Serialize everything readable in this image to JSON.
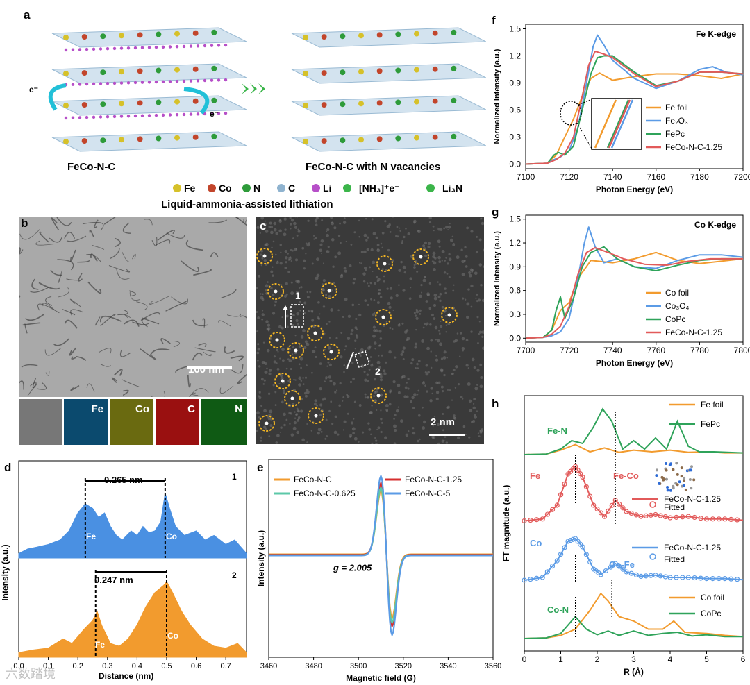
{
  "panels": {
    "a": "a",
    "b": "b",
    "c": "c",
    "d": "d",
    "e": "e",
    "f": "f",
    "g": "g",
    "h": "h"
  },
  "schematic": {
    "left_title": "FeCo-N-C",
    "right_title": "FeCo-N-C with N vacancies",
    "caption": "Liquid-ammonia-assisted lithiation",
    "electron": "e",
    "legend": [
      "Fe",
      "Co",
      "N",
      "C",
      "Li",
      "[NH3]+e-",
      "Li3N"
    ],
    "legend_colors": {
      "Fe": "#d6c12a",
      "Co": "#c2452b",
      "N": "#2e9b3a",
      "C": "#8fb3cf",
      "Li": "#b64fc8"
    }
  },
  "tem": {
    "scale_b": "100 nm",
    "scale_c": "2 nm",
    "maps": [
      "Fe",
      "Co",
      "C",
      "N"
    ],
    "box1": "1",
    "box2": "2"
  },
  "line_profiles": {
    "profile1": {
      "label": "1",
      "distance": "0.265 nm",
      "left_atom": "Fe",
      "right_atom": "Co",
      "color": "#4a90e2"
    },
    "profile2": {
      "label": "2",
      "distance": "0.247 nm",
      "left_atom": "Fe",
      "right_atom": "Co",
      "color": "#f29b2e"
    },
    "xlabel": "Distance (nm)",
    "ylabel": "Intensity (a.u.)",
    "xticks": [
      "0.0",
      "0.1",
      "0.2",
      "0.3",
      "0.4",
      "0.5",
      "0.6",
      "0.7"
    ]
  },
  "chart_data": [
    {
      "panel": "e",
      "type": "line",
      "title": "",
      "xlabel": "Magnetic field (G)",
      "ylabel": "Intensity (a.u.)",
      "xlim": [
        3460,
        3560
      ],
      "xticks": [
        "3460",
        "3480",
        "3500",
        "3520",
        "3540",
        "3560"
      ],
      "annotation": "g = 2.005",
      "series": [
        {
          "name": "FeCo-N-C",
          "color": "#f29b2e",
          "amp": 0.8
        },
        {
          "name": "FeCo-N-C-1.25",
          "color": "#d62f2f",
          "amp": 0.9
        },
        {
          "name": "FeCo-N-C-0.625",
          "color": "#5cc8a8",
          "amp": 0.85
        },
        {
          "name": "FeCo-N-C-5",
          "color": "#5b9be6",
          "amp": 1.0
        }
      ]
    },
    {
      "panel": "f",
      "type": "line",
      "title": "Fe K-edge",
      "xlabel": "Photon Energy (eV)",
      "ylabel": "Normalized Intensity (a.u.)",
      "xlim": [
        7100,
        7200
      ],
      "ylim": [
        -0.05,
        1.55
      ],
      "xticks": [
        "7100",
        "7120",
        "7140",
        "7160",
        "7180",
        "7200"
      ],
      "yticks": [
        "0.0",
        "0.3",
        "0.6",
        "0.9",
        "1.2",
        "1.5"
      ],
      "series": [
        {
          "name": "Fe foil",
          "color": "#f29b2e",
          "x": [
            7100,
            7110,
            7114,
            7118,
            7122,
            7126,
            7130,
            7134,
            7140,
            7150,
            7160,
            7170,
            7180,
            7190,
            7200
          ],
          "y": [
            0,
            0.01,
            0.1,
            0.3,
            0.5,
            0.75,
            0.95,
            1.01,
            0.93,
            0.97,
            1.0,
            1.0,
            0.98,
            0.95,
            1.0
          ]
        },
        {
          "name": "Fe2O3",
          "color": "#5b9be6",
          "x": [
            7100,
            7110,
            7113,
            7116,
            7120,
            7124,
            7128,
            7131,
            7133,
            7136,
            7140,
            7150,
            7160,
            7170,
            7180,
            7186,
            7192,
            7200
          ],
          "y": [
            0,
            0.01,
            0.05,
            0.08,
            0.15,
            0.4,
            0.9,
            1.3,
            1.43,
            1.32,
            1.15,
            0.95,
            0.84,
            0.92,
            1.05,
            1.08,
            1.02,
            0.99
          ]
        },
        {
          "name": "FePc",
          "color": "#2fa35a",
          "x": [
            7100,
            7110,
            7113,
            7115,
            7118,
            7122,
            7126,
            7130,
            7133,
            7136,
            7140,
            7150,
            7160,
            7170,
            7180,
            7190,
            7200
          ],
          "y": [
            0,
            0.01,
            0.1,
            0.13,
            0.1,
            0.2,
            0.6,
            1.0,
            1.18,
            1.2,
            1.2,
            1.02,
            0.87,
            0.92,
            1.02,
            1.02,
            1.0
          ]
        },
        {
          "name": "FeCo-N-C-1.25",
          "color": "#e25a5a",
          "x": [
            7100,
            7110,
            7114,
            7118,
            7122,
            7126,
            7129,
            7132,
            7136,
            7140,
            7150,
            7160,
            7170,
            7180,
            7190,
            7200
          ],
          "y": [
            0,
            0.01,
            0.05,
            0.12,
            0.3,
            0.75,
            1.1,
            1.25,
            1.22,
            1.18,
            1.0,
            0.86,
            0.92,
            1.02,
            1.02,
            1.0
          ]
        }
      ]
    },
    {
      "panel": "g",
      "type": "line",
      "title": "Co K-edge",
      "xlabel": "Photon Energy (eV)",
      "ylabel": "Normalized Intensity (a.u.)",
      "xlim": [
        7700,
        7800
      ],
      "ylim": [
        -0.05,
        1.55
      ],
      "xticks": [
        "7700",
        "7720",
        "7740",
        "7760",
        "7780",
        "7800"
      ],
      "yticks": [
        "0.0",
        "0.3",
        "0.6",
        "0.9",
        "1.2",
        "1.5"
      ],
      "series": [
        {
          "name": "Co foil",
          "color": "#f29b2e",
          "x": [
            7700,
            7708,
            7712,
            7716,
            7720,
            7724,
            7730,
            7740,
            7750,
            7760,
            7770,
            7780,
            7790,
            7800
          ],
          "y": [
            0,
            0.01,
            0.1,
            0.35,
            0.45,
            0.75,
            0.98,
            0.95,
            1.0,
            1.08,
            0.98,
            0.94,
            0.97,
            1.0
          ]
        },
        {
          "name": "Co3O4",
          "color": "#5b9be6",
          "x": [
            7700,
            7708,
            7712,
            7716,
            7720,
            7724,
            7727,
            7729,
            7732,
            7736,
            7742,
            7750,
            7760,
            7770,
            7780,
            7790,
            7800
          ],
          "y": [
            0,
            0.01,
            0.03,
            0.08,
            0.25,
            0.75,
            1.2,
            1.4,
            1.15,
            0.95,
            1.0,
            0.9,
            0.88,
            0.98,
            1.05,
            1.05,
            1.02
          ]
        },
        {
          "name": "CoPc",
          "color": "#2fa35a",
          "x": [
            7700,
            7708,
            7712,
            7714,
            7716,
            7718,
            7722,
            7726,
            7730,
            7736,
            7742,
            7750,
            7760,
            7770,
            7780,
            7790,
            7800
          ],
          "y": [
            0,
            0.01,
            0.1,
            0.35,
            0.52,
            0.25,
            0.5,
            0.9,
            1.08,
            1.15,
            1.0,
            0.9,
            0.85,
            0.92,
            0.98,
            1.0,
            1.0
          ]
        },
        {
          "name": "FeCo-N-C-1.25",
          "color": "#e25a5a",
          "x": [
            7700,
            7708,
            7712,
            7716,
            7720,
            7724,
            7728,
            7732,
            7738,
            7745,
            7755,
            7765,
            7775,
            7785,
            7800
          ],
          "y": [
            0,
            0.01,
            0.05,
            0.15,
            0.4,
            0.8,
            1.08,
            1.14,
            1.08,
            1.0,
            0.93,
            0.92,
            0.97,
            1.0,
            1.0
          ]
        }
      ]
    },
    {
      "panel": "h",
      "type": "line",
      "title": "",
      "xlabel": "R (Å)",
      "ylabel": "FT magnitude (a.u.)",
      "xlim": [
        0,
        6
      ],
      "xticks": [
        "0",
        "1",
        "2",
        "3",
        "4",
        "5",
        "6"
      ],
      "annotations": [
        "Fe-N",
        "Fe",
        "Fe-Co",
        "Co",
        "Co-Fe",
        "Co-N"
      ],
      "legend_groups": [
        [
          "Fe foil",
          "FePc"
        ],
        [
          "FeCo-N-C-1.25",
          "Fitted"
        ],
        [
          "FeCo-N-C-1.25",
          "Fitted"
        ],
        [
          "Co foil",
          "CoPc"
        ]
      ],
      "series": [
        {
          "name": "Fe foil",
          "color": "#f29b2e",
          "x": [
            0,
            0.6,
            1.0,
            1.4,
            1.8,
            2.2,
            2.6,
            3.0,
            3.5,
            4.0,
            4.5,
            5.0,
            5.5,
            6.0
          ],
          "y": [
            0,
            0.01,
            0.08,
            0.18,
            0.05,
            0.12,
            0.04,
            0.08,
            0.05,
            0.08,
            0.04,
            0.05,
            0.03,
            0.03
          ]
        },
        {
          "name": "FePc",
          "color": "#2fa35a",
          "x": [
            0,
            0.6,
            1.0,
            1.3,
            1.6,
            1.9,
            2.15,
            2.4,
            2.7,
            3.0,
            3.3,
            3.6,
            3.9,
            4.2,
            4.5,
            4.8,
            5.2,
            6.0
          ],
          "y": [
            0,
            0.01,
            0.1,
            0.25,
            0.2,
            0.5,
            0.82,
            0.6,
            0.1,
            0.25,
            0.1,
            0.3,
            0.1,
            0.6,
            0.15,
            0.05,
            0.05,
            0.03
          ]
        },
        {
          "name": "FeCo-N-C-1.25 (Fe)",
          "color": "#e25a5a",
          "x": [
            0,
            0.5,
            0.9,
            1.2,
            1.4,
            1.6,
            1.9,
            2.2,
            2.5,
            2.8,
            3.2,
            3.6,
            4.0,
            4.5,
            5.0,
            5.5,
            6.0
          ],
          "y": [
            0.05,
            0.08,
            0.3,
            0.8,
            0.92,
            0.75,
            0.3,
            0.12,
            0.38,
            0.2,
            0.12,
            0.15,
            0.1,
            0.12,
            0.08,
            0.08,
            0.06
          ]
        },
        {
          "name": "FeCo-N-C-1.25 (Co)",
          "color": "#5b9be6",
          "x": [
            0,
            0.5,
            0.9,
            1.2,
            1.4,
            1.6,
            1.9,
            2.1,
            2.5,
            2.8,
            3.2,
            3.6,
            4.0,
            4.5,
            5.0,
            5.5,
            6.0
          ],
          "y": [
            0.05,
            0.1,
            0.4,
            0.75,
            0.8,
            0.65,
            0.25,
            0.15,
            0.35,
            0.2,
            0.12,
            0.14,
            0.1,
            0.1,
            0.08,
            0.08,
            0.06
          ]
        },
        {
          "name": "Co foil",
          "color": "#f29b2e",
          "x": [
            0,
            0.6,
            1.0,
            1.4,
            1.8,
            2.1,
            2.3,
            2.6,
            3.0,
            3.4,
            3.8,
            4.1,
            4.4,
            5.0,
            5.5,
            6.0
          ],
          "y": [
            0,
            0.01,
            0.05,
            0.15,
            0.45,
            0.72,
            0.6,
            0.35,
            0.28,
            0.15,
            0.15,
            0.28,
            0.1,
            0.08,
            0.05,
            0.03
          ]
        },
        {
          "name": "CoPc",
          "color": "#2fa35a",
          "x": [
            0,
            0.6,
            1.0,
            1.4,
            1.7,
            2.0,
            2.3,
            2.6,
            3.0,
            3.4,
            3.8,
            4.2,
            4.6,
            5.0,
            5.5,
            6.0
          ],
          "y": [
            0,
            0.01,
            0.08,
            0.35,
            0.15,
            0.06,
            0.12,
            0.05,
            0.12,
            0.05,
            0.08,
            0.1,
            0.04,
            0.06,
            0.03,
            0.03
          ]
        }
      ]
    }
  ],
  "watermark": "六数踏境"
}
